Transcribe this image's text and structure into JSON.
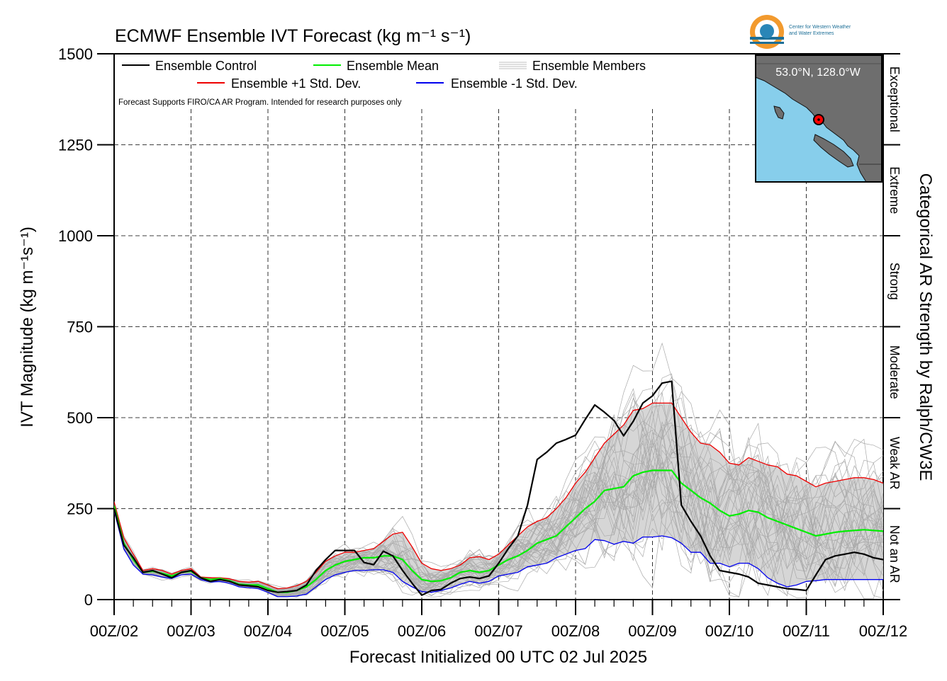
{
  "chart_data": {
    "type": "line",
    "title": "ECMWF Ensemble IVT Forecast (kg m⁻¹ s⁻¹)",
    "xlabel": "Forecast Initialized 00 UTC 02 Jul 2025",
    "ylabel": "IVT Magnitude (kg m⁻¹s⁻¹)",
    "right_label": "Categorical AR Strength by Ralph/CW3E",
    "disclaimer": "Forecast Supports FIRO/CA AR Program. Intended for research purposes only",
    "ylim": [
      0,
      1500
    ],
    "xlim": [
      0,
      240
    ],
    "y_ticks": [
      0,
      250,
      500,
      750,
      1000,
      1250,
      1500
    ],
    "x_tick_labels": [
      "00Z/02",
      "00Z/03",
      "00Z/04",
      "00Z/05",
      "00Z/06",
      "00Z/07",
      "00Z/08",
      "00Z/09",
      "00Z/10",
      "00Z/11",
      "00Z/12"
    ],
    "grid": true,
    "legend_position": "top-left",
    "legend": {
      "control": "Ensemble Control",
      "mean": "Ensemble Mean",
      "members": "Ensemble Members",
      "plus_std": "Ensemble +1 Std. Dev.",
      "minus_std": "Ensemble -1 Std. Dev."
    },
    "categories": [
      {
        "label": "Not an AR",
        "range": [
          0,
          250
        ]
      },
      {
        "label": "Weak AR",
        "range": [
          250,
          500
        ]
      },
      {
        "label": "Moderate",
        "range": [
          500,
          750
        ]
      },
      {
        "label": "Strong",
        "range": [
          750,
          1000
        ]
      },
      {
        "label": "Extreme",
        "range": [
          1000,
          1250
        ]
      },
      {
        "label": "Exceptional",
        "range": [
          1250,
          1500
        ]
      }
    ],
    "inset_map": {
      "location_label": "53.0°N, 128.0°W",
      "land_color": "#6e6e6e",
      "ocean_color": "#87ceeb",
      "marker_color": "#ff0000"
    },
    "logo": {
      "text_line1": "Center for Western Weather",
      "text_line2": "and Water Extremes"
    },
    "colors": {
      "control": "#000000",
      "mean": "#00ee00",
      "plus_std": "#ee0000",
      "minus_std": "#0000ee",
      "members": "#aaaaaa",
      "spread_fill": "#d6d6d6"
    },
    "series": [
      {
        "name": "Ensemble Control",
        "x": [
          0,
          3,
          6,
          9,
          12,
          15,
          18,
          21,
          24,
          27,
          30,
          33,
          36,
          39,
          42,
          45,
          48,
          51,
          54,
          57,
          60,
          63,
          66,
          69,
          72,
          75,
          78,
          81,
          84,
          87,
          90,
          93,
          96,
          99,
          102,
          105,
          108,
          111,
          114,
          117,
          120,
          123,
          126,
          129,
          132,
          135,
          138,
          141,
          144,
          147,
          150,
          153,
          156,
          159,
          162,
          165,
          168,
          171,
          174,
          177,
          180,
          183,
          186,
          189,
          192,
          195,
          198,
          201,
          204,
          207,
          210,
          213,
          216,
          219,
          222,
          225,
          228,
          231,
          234,
          237,
          240
        ],
        "values": [
          250,
          150,
          115,
          75,
          80,
          70,
          60,
          75,
          80,
          60,
          50,
          55,
          50,
          40,
          38,
          35,
          25,
          20,
          22,
          25,
          40,
          80,
          110,
          135,
          135,
          135,
          102,
          96,
          133,
          120,
          80,
          45,
          12,
          25,
          28,
          45,
          58,
          62,
          58,
          65,
          100,
          140,
          175,
          260,
          385,
          405,
          430,
          440,
          452,
          495,
          535,
          515,
          492,
          450,
          490,
          540,
          560,
          595,
          600,
          260,
          215,
          175,
          120,
          80,
          75,
          70,
          62,
          45,
          40,
          35,
          30,
          28,
          25,
          68,
          110,
          120,
          125,
          130,
          125,
          115,
          110
        ]
      },
      {
        "name": "Ensemble Mean",
        "x": [
          0,
          3,
          6,
          9,
          12,
          15,
          18,
          21,
          24,
          27,
          30,
          33,
          36,
          39,
          42,
          45,
          48,
          51,
          54,
          57,
          60,
          63,
          66,
          69,
          72,
          75,
          78,
          81,
          84,
          87,
          90,
          93,
          96,
          99,
          102,
          105,
          108,
          111,
          114,
          117,
          120,
          123,
          126,
          129,
          132,
          135,
          138,
          141,
          144,
          147,
          150,
          153,
          156,
          159,
          162,
          165,
          168,
          171,
          174,
          177,
          180,
          183,
          186,
          189,
          192,
          195,
          198,
          201,
          204,
          207,
          210,
          213,
          216,
          219,
          222,
          225,
          228,
          231,
          234,
          237,
          240
        ],
        "values": [
          258,
          155,
          110,
          75,
          78,
          72,
          65,
          75,
          78,
          60,
          55,
          58,
          52,
          42,
          40,
          40,
          30,
          20,
          20,
          25,
          35,
          55,
          80,
          95,
          105,
          110,
          115,
          115,
          120,
          120,
          110,
          80,
          55,
          50,
          52,
          60,
          75,
          80,
          75,
          80,
          95,
          110,
          120,
          135,
          155,
          165,
          175,
          200,
          225,
          250,
          270,
          300,
          305,
          310,
          340,
          350,
          355,
          355,
          355,
          320,
          300,
          280,
          265,
          245,
          230,
          235,
          245,
          240,
          225,
          215,
          205,
          195,
          185,
          175,
          180,
          185,
          188,
          190,
          192,
          190,
          188
        ]
      },
      {
        "name": "Ensemble +1 Std. Dev.",
        "x": [
          0,
          3,
          6,
          9,
          12,
          15,
          18,
          21,
          24,
          27,
          30,
          33,
          36,
          39,
          42,
          45,
          48,
          51,
          54,
          57,
          60,
          63,
          66,
          69,
          72,
          75,
          78,
          81,
          84,
          87,
          90,
          93,
          96,
          99,
          102,
          105,
          108,
          111,
          114,
          117,
          120,
          123,
          126,
          129,
          132,
          135,
          138,
          141,
          144,
          147,
          150,
          153,
          156,
          159,
          162,
          165,
          168,
          171,
          174,
          177,
          180,
          183,
          186,
          189,
          192,
          195,
          198,
          201,
          204,
          207,
          210,
          213,
          216,
          219,
          222,
          225,
          228,
          231,
          234,
          237,
          240
        ],
        "values": [
          268,
          170,
          125,
          80,
          85,
          80,
          70,
          80,
          85,
          62,
          60,
          60,
          57,
          50,
          48,
          50,
          40,
          30,
          32,
          38,
          50,
          75,
          105,
          120,
          130,
          130,
          135,
          140,
          160,
          180,
          185,
          145,
          100,
          85,
          80,
          85,
          95,
          115,
          118,
          110,
          125,
          150,
          175,
          200,
          215,
          225,
          250,
          280,
          320,
          350,
          390,
          430,
          455,
          480,
          520,
          525,
          540,
          540,
          540,
          500,
          460,
          430,
          425,
          405,
          375,
          370,
          390,
          380,
          370,
          365,
          345,
          340,
          325,
          310,
          320,
          325,
          330,
          335,
          335,
          330,
          320
        ]
      },
      {
        "name": "Ensemble -1 Std. Dev.",
        "x": [
          0,
          3,
          6,
          9,
          12,
          15,
          18,
          21,
          24,
          27,
          30,
          33,
          36,
          39,
          42,
          45,
          48,
          51,
          54,
          57,
          60,
          63,
          66,
          69,
          72,
          75,
          78,
          81,
          84,
          87,
          90,
          93,
          96,
          99,
          102,
          105,
          108,
          111,
          114,
          117,
          120,
          123,
          126,
          129,
          132,
          135,
          138,
          141,
          144,
          147,
          150,
          153,
          156,
          159,
          162,
          165,
          168,
          171,
          174,
          177,
          180,
          183,
          186,
          189,
          192,
          195,
          198,
          201,
          204,
          207,
          210,
          213,
          216,
          219,
          222,
          225,
          228,
          231,
          234,
          237,
          240
        ],
        "values": [
          245,
          140,
          95,
          70,
          68,
          62,
          58,
          68,
          70,
          55,
          48,
          50,
          45,
          35,
          33,
          30,
          20,
          8,
          8,
          10,
          15,
          35,
          55,
          68,
          75,
          80,
          80,
          82,
          82,
          75,
          50,
          35,
          22,
          20,
          25,
          32,
          42,
          50,
          45,
          50,
          65,
          70,
          75,
          90,
          95,
          100,
          115,
          125,
          135,
          140,
          165,
          162,
          152,
          160,
          155,
          172,
          172,
          175,
          170,
          155,
          130,
          130,
          100,
          100,
          90,
          100,
          100,
          85,
          60,
          45,
          35,
          40,
          50,
          52,
          55,
          55,
          55,
          55,
          55,
          55,
          55
        ]
      }
    ]
  }
}
